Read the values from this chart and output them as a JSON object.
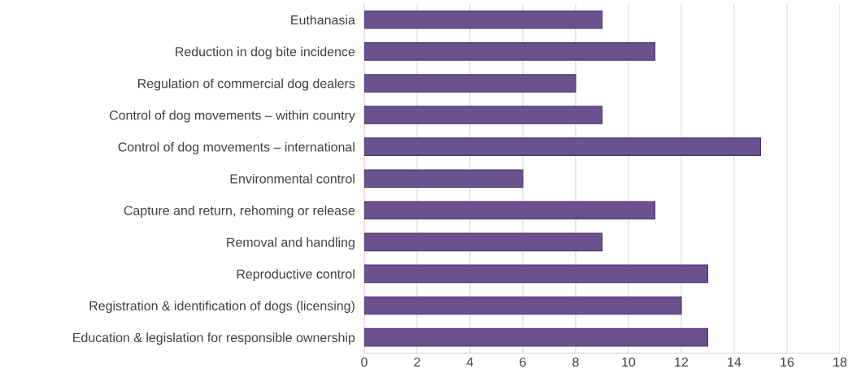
{
  "chart_data": {
    "type": "bar",
    "orientation": "horizontal",
    "categories": [
      "Euthanasia",
      "Reduction in dog bite incidence",
      "Regulation of commercial dog dealers",
      "Control of dog movements – within country",
      "Control of dog movements – international",
      "Environmental control",
      "Capture and return, rehoming or release",
      "Removal and handling",
      "Reproductive control",
      "Registration & identification of dogs (licensing)",
      "Education & legislation for responsible ownership"
    ],
    "values": [
      9,
      11,
      8,
      9,
      15,
      6,
      11,
      9,
      13,
      12,
      13
    ],
    "color": "#6b5190",
    "xlim": [
      0,
      18
    ],
    "xticks": [
      0,
      2,
      4,
      6,
      8,
      10,
      12,
      14,
      16,
      18
    ],
    "grid": "x"
  }
}
